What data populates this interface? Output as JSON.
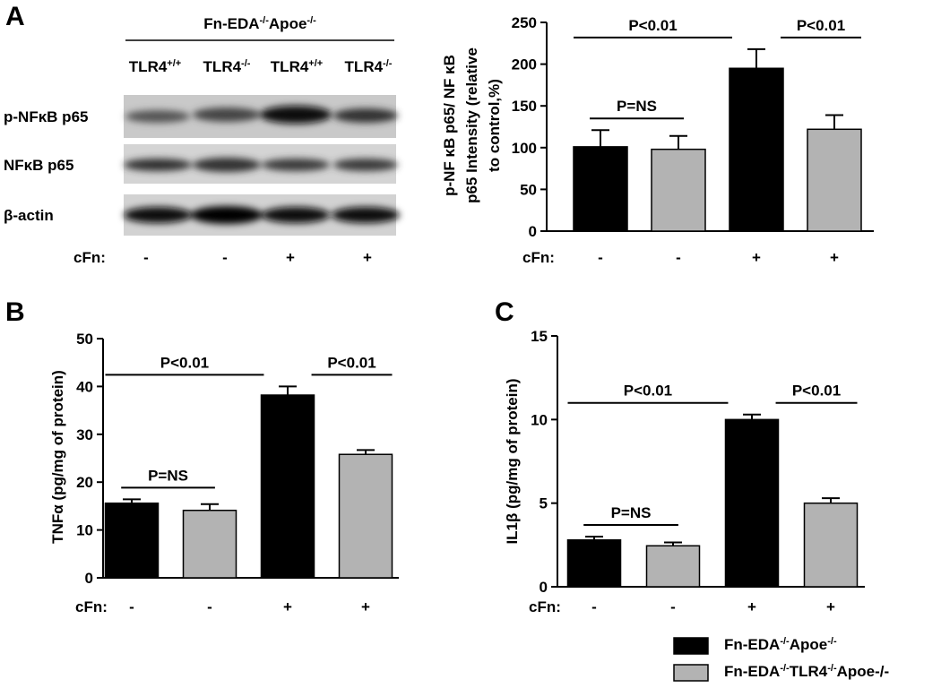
{
  "panel_labels": [
    "A",
    "B",
    "C"
  ],
  "blot": {
    "header": [
      {
        "text": "Fn-EDA"
      },
      {
        "text": "-/-",
        "sup": true
      },
      {
        "text": "Apoe"
      },
      {
        "text": "-/-",
        "sup": true
      }
    ],
    "lanes": [
      [
        {
          "text": "TLR4"
        },
        {
          "text": "+/+",
          "sup": true
        }
      ],
      [
        {
          "text": "TLR4"
        },
        {
          "text": "-/-",
          "sup": true
        }
      ],
      [
        {
          "text": "TLR4"
        },
        {
          "text": "+/+",
          "sup": true
        }
      ],
      [
        {
          "text": "TLR4"
        },
        {
          "text": "-/-",
          "sup": true
        }
      ]
    ],
    "rows": [
      "p-NFκB p65",
      "NFκB p65",
      "β-actin"
    ],
    "x_label": "cFn:",
    "treatment": [
      "-",
      "-",
      "+",
      "+"
    ]
  },
  "legend": [
    {
      "name": [
        {
          "text": "Fn-EDA"
        },
        {
          "text": "-/-",
          "sup": true
        },
        {
          "text": "Apoe"
        },
        {
          "text": "-/-",
          "sup": true
        }
      ],
      "color": "#000000"
    },
    {
      "name": [
        {
          "text": "Fn-EDA"
        },
        {
          "text": "-/-",
          "sup": true
        },
        {
          "text": "TLR4"
        },
        {
          "text": "-/-",
          "sup": true
        },
        {
          "text": "Apoe-/-"
        }
      ],
      "color": "#b3b3b3"
    }
  ],
  "chart_data": [
    {
      "type": "bar",
      "y_label": [
        "p-NF κB p65/ NF κB",
        "p65 Intensity (relative",
        "to control,%)"
      ],
      "x_label": "cFn:",
      "categories": [
        "-",
        "-",
        "+",
        "+"
      ],
      "series": [
        {
          "color": "#000000",
          "values": [
            101,
            null,
            195,
            null
          ],
          "errors": [
            20,
            null,
            23,
            null
          ]
        },
        {
          "color": "#b3b3b3",
          "values": [
            null,
            98,
            null,
            122
          ],
          "errors": [
            null,
            16,
            null,
            17
          ]
        }
      ],
      "ylim": [
        0,
        250
      ],
      "yticks": [
        0,
        50,
        100,
        150,
        200,
        250
      ],
      "annotations": [
        "P<0.01",
        "P=NS",
        "P<0.01"
      ]
    },
    {
      "type": "bar",
      "y_label": [
        "TNFα (pg/mg of protein)"
      ],
      "x_label": "cFn:",
      "categories": [
        "-",
        "-",
        "+",
        "+"
      ],
      "series": [
        {
          "color": "#000000",
          "values": [
            15.6,
            null,
            38.2,
            null
          ],
          "errors": [
            0.8,
            null,
            1.8,
            null
          ]
        },
        {
          "color": "#b3b3b3",
          "values": [
            null,
            14.1,
            null,
            25.8
          ],
          "errors": [
            null,
            1.3,
            null,
            0.9
          ]
        }
      ],
      "ylim": [
        0,
        50
      ],
      "yticks": [
        0,
        10,
        20,
        30,
        40,
        50
      ],
      "annotations": [
        "P<0.01",
        "P=NS",
        "P<0.01"
      ]
    },
    {
      "type": "bar",
      "y_label": [
        "IL1β (pg/mg of protein)"
      ],
      "x_label": "cFn:",
      "categories": [
        "-",
        "-",
        "+",
        "+"
      ],
      "series": [
        {
          "color": "#000000",
          "values": [
            2.8,
            null,
            10.0,
            null
          ],
          "errors": [
            0.2,
            null,
            0.3,
            null
          ]
        },
        {
          "color": "#b3b3b3",
          "values": [
            null,
            2.45,
            null,
            5.0
          ],
          "errors": [
            null,
            0.2,
            null,
            0.3
          ]
        }
      ],
      "ylim": [
        0,
        15
      ],
      "yticks": [
        0,
        5,
        10,
        15
      ],
      "annotations": [
        "P<0.01",
        "P=NS",
        "P<0.01"
      ]
    }
  ]
}
